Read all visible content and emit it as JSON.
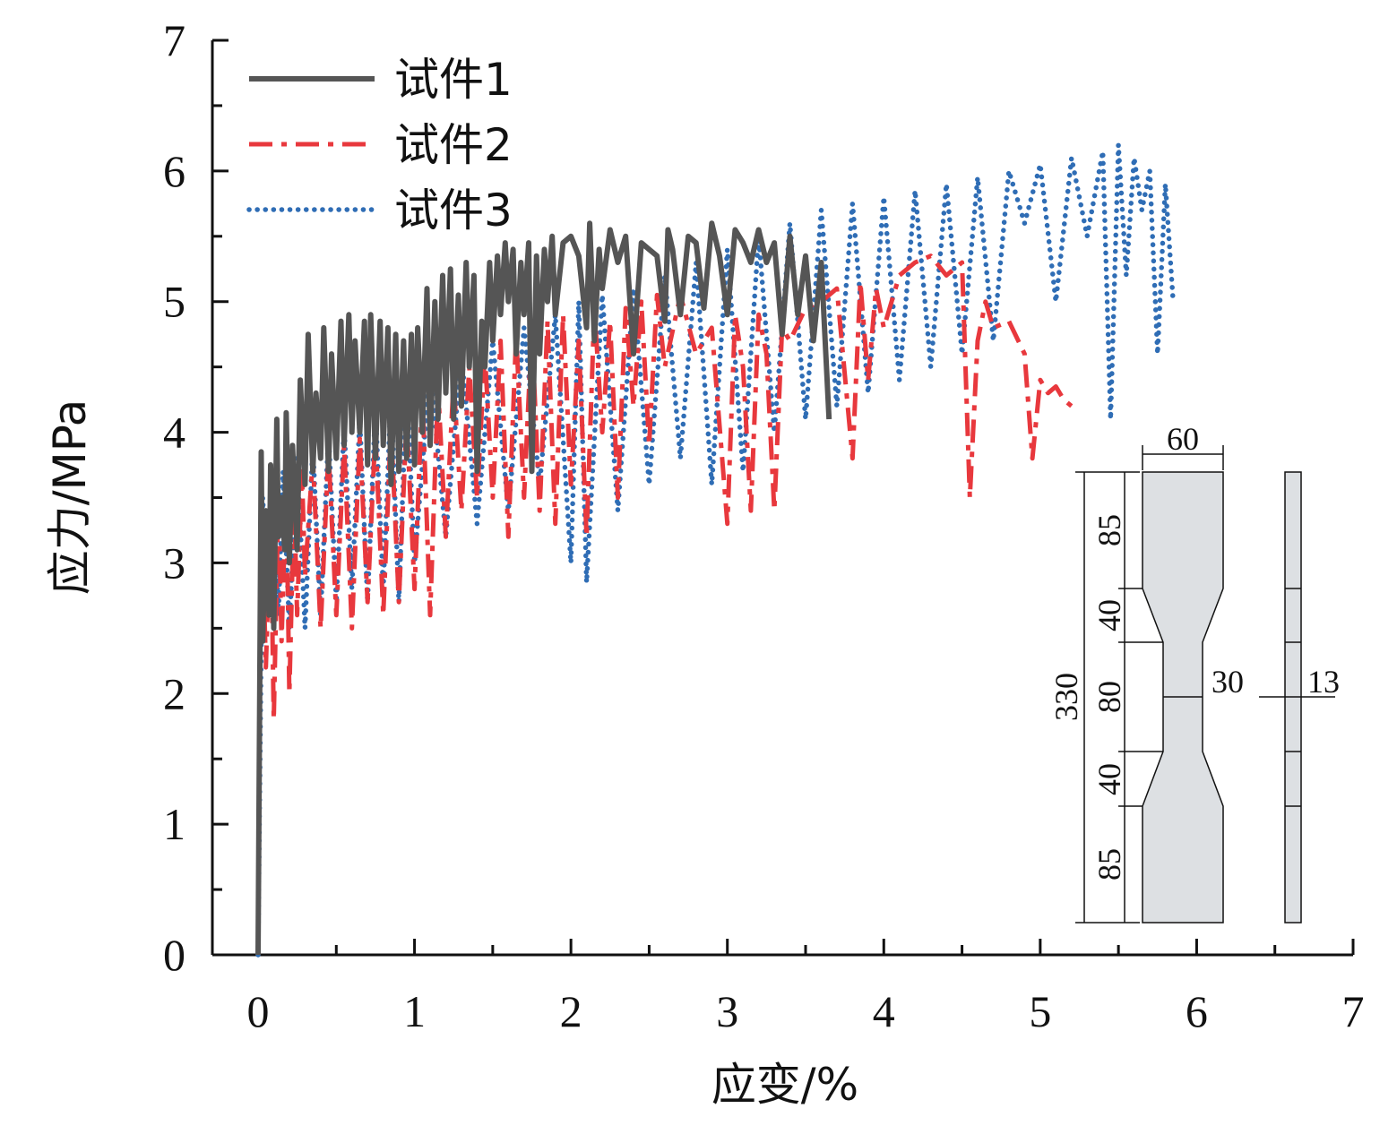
{
  "chart_data": {
    "type": "line",
    "title": "",
    "xlabel": "应变/%",
    "ylabel": "应力/MPa",
    "xlim": [
      0,
      7
    ],
    "ylim": [
      0,
      7
    ],
    "xticks": [
      "0",
      "1",
      "2",
      "3",
      "4",
      "5",
      "6",
      "7"
    ],
    "yticks": [
      "0",
      "1",
      "2",
      "3",
      "4",
      "5",
      "6",
      "7"
    ],
    "grid": false,
    "legend_position": "top-left",
    "series": [
      {
        "name": "试件1",
        "color": "#555555",
        "style": "solid",
        "x": [
          0,
          0.02,
          0.03,
          0.05,
          0.07,
          0.08,
          0.1,
          0.12,
          0.13,
          0.15,
          0.17,
          0.18,
          0.2,
          0.22,
          0.25,
          0.27,
          0.3,
          0.32,
          0.35,
          0.37,
          0.4,
          0.42,
          0.45,
          0.47,
          0.5,
          0.53,
          0.55,
          0.58,
          0.6,
          0.62,
          0.65,
          0.68,
          0.7,
          0.72,
          0.75,
          0.78,
          0.8,
          0.83,
          0.85,
          0.88,
          0.9,
          0.93,
          0.95,
          0.98,
          1.0,
          1.02,
          1.05,
          1.08,
          1.1,
          1.13,
          1.15,
          1.18,
          1.2,
          1.23,
          1.25,
          1.28,
          1.3,
          1.33,
          1.35,
          1.38,
          1.4,
          1.43,
          1.45,
          1.48,
          1.5,
          1.53,
          1.55,
          1.58,
          1.6,
          1.63,
          1.65,
          1.68,
          1.7,
          1.73,
          1.75,
          1.78,
          1.8,
          1.83,
          1.85,
          1.88,
          1.9,
          1.95,
          2.0,
          2.05,
          2.1,
          2.12,
          2.15,
          2.18,
          2.2,
          2.25,
          2.3,
          2.35,
          2.4,
          2.45,
          2.5,
          2.55,
          2.6,
          2.62,
          2.65,
          2.7,
          2.75,
          2.8,
          2.85,
          2.9,
          2.95,
          3.0,
          3.05,
          3.1,
          3.15,
          3.2,
          3.25,
          3.3,
          3.35,
          3.4,
          3.45,
          3.5,
          3.55,
          3.6,
          3.65
        ],
        "y": [
          0,
          3.85,
          2.4,
          3.4,
          2.6,
          3.75,
          2.5,
          4.1,
          3.2,
          3.5,
          3.1,
          4.15,
          3.0,
          3.9,
          3.1,
          4.4,
          3.6,
          4.75,
          3.7,
          4.3,
          3.8,
          4.8,
          3.7,
          4.6,
          3.8,
          4.85,
          3.9,
          4.9,
          4.0,
          4.7,
          4.0,
          4.85,
          3.75,
          4.9,
          3.8,
          4.85,
          3.9,
          4.8,
          3.6,
          4.75,
          3.7,
          4.7,
          3.8,
          4.75,
          3.75,
          4.8,
          4.0,
          5.1,
          3.9,
          5.0,
          4.1,
          5.2,
          4.3,
          5.25,
          4.1,
          5.05,
          4.2,
          5.3,
          4.5,
          5.2,
          3.7,
          4.85,
          4.5,
          5.3,
          4.7,
          5.35,
          4.9,
          5.45,
          5.0,
          5.4,
          4.6,
          5.3,
          4.9,
          5.45,
          3.7,
          5.35,
          4.6,
          5.4,
          5.0,
          5.5,
          4.9,
          5.45,
          5.5,
          5.35,
          4.8,
          5.6,
          4.7,
          5.4,
          5.1,
          5.55,
          5.3,
          5.5,
          4.6,
          5.45,
          5.4,
          5.35,
          4.85,
          5.55,
          5.4,
          4.9,
          5.5,
          5.45,
          4.95,
          5.6,
          5.35,
          4.9,
          5.55,
          5.45,
          5.3,
          5.55,
          5.3,
          5.45,
          4.75,
          5.5,
          4.9,
          5.35,
          4.7,
          5.3,
          4.1
        ]
      },
      {
        "name": "试件2",
        "color": "#e8383d",
        "style": "dashdot",
        "x": [
          0,
          0.02,
          0.05,
          0.08,
          0.1,
          0.13,
          0.15,
          0.18,
          0.2,
          0.23,
          0.25,
          0.28,
          0.3,
          0.35,
          0.4,
          0.45,
          0.5,
          0.55,
          0.6,
          0.65,
          0.7,
          0.75,
          0.8,
          0.85,
          0.9,
          0.95,
          1.0,
          1.05,
          1.1,
          1.15,
          1.2,
          1.25,
          1.3,
          1.35,
          1.4,
          1.45,
          1.5,
          1.55,
          1.6,
          1.65,
          1.7,
          1.75,
          1.8,
          1.85,
          1.9,
          1.95,
          2.0,
          2.05,
          2.1,
          2.15,
          2.2,
          2.25,
          2.3,
          2.35,
          2.4,
          2.45,
          2.5,
          2.55,
          2.6,
          2.7,
          2.8,
          2.9,
          3.0,
          3.05,
          3.1,
          3.15,
          3.2,
          3.25,
          3.3,
          3.35,
          3.4,
          3.5,
          3.6,
          3.7,
          3.8,
          3.85,
          3.9,
          3.95,
          4.0,
          4.1,
          4.2,
          4.3,
          4.4,
          4.5,
          4.55,
          4.6,
          4.65,
          4.7,
          4.8,
          4.9,
          4.95,
          5.0,
          5.05,
          5.1,
          5.15,
          5.2
        ],
        "y": [
          0,
          3.6,
          2.2,
          3.4,
          1.8,
          3.5,
          2.4,
          3.6,
          2.0,
          3.5,
          2.6,
          3.7,
          2.9,
          3.8,
          2.5,
          3.85,
          2.6,
          3.9,
          2.5,
          3.95,
          2.7,
          4.0,
          2.6,
          4.05,
          2.7,
          4.1,
          2.8,
          4.3,
          2.6,
          4.35,
          3.2,
          4.4,
          3.4,
          4.5,
          3.5,
          4.6,
          3.5,
          4.7,
          3.2,
          4.75,
          3.5,
          4.8,
          3.4,
          4.85,
          3.3,
          4.9,
          3.6,
          4.7,
          3.2,
          4.95,
          4.0,
          4.85,
          3.5,
          4.95,
          4.2,
          5.0,
          3.9,
          5.05,
          4.5,
          5.05,
          4.6,
          4.8,
          3.3,
          4.9,
          4.5,
          3.4,
          4.9,
          4.6,
          3.4,
          4.8,
          4.7,
          4.95,
          5.0,
          5.1,
          3.8,
          5.15,
          4.4,
          5.1,
          4.8,
          5.2,
          5.3,
          5.35,
          5.2,
          5.3,
          3.5,
          4.7,
          5.0,
          4.8,
          4.85,
          4.6,
          3.8,
          4.4,
          4.3,
          4.35,
          4.25,
          4.2
        ]
      },
      {
        "name": "试件3",
        "color": "#2f6db5",
        "style": "dotted",
        "x": [
          0,
          0.03,
          0.06,
          0.1,
          0.13,
          0.16,
          0.2,
          0.25,
          0.3,
          0.35,
          0.4,
          0.45,
          0.5,
          0.55,
          0.6,
          0.65,
          0.7,
          0.75,
          0.8,
          0.85,
          0.9,
          0.95,
          1.0,
          1.1,
          1.2,
          1.3,
          1.4,
          1.5,
          1.6,
          1.7,
          1.8,
          1.9,
          2.0,
          2.05,
          2.1,
          2.2,
          2.3,
          2.4,
          2.5,
          2.6,
          2.7,
          2.8,
          2.9,
          3.0,
          3.1,
          3.2,
          3.3,
          3.4,
          3.5,
          3.6,
          3.7,
          3.8,
          3.9,
          4.0,
          4.1,
          4.2,
          4.3,
          4.4,
          4.5,
          4.6,
          4.7,
          4.8,
          4.9,
          5.0,
          5.1,
          5.2,
          5.3,
          5.4,
          5.45,
          5.5,
          5.55,
          5.6,
          5.65,
          5.7,
          5.75,
          5.8,
          5.85
        ],
        "y": [
          0,
          3.5,
          2.8,
          3.6,
          2.6,
          3.7,
          2.5,
          3.8,
          2.5,
          3.9,
          2.6,
          4.0,
          2.7,
          4.05,
          2.8,
          4.1,
          2.7,
          4.2,
          2.8,
          4.3,
          2.7,
          4.4,
          3.0,
          4.5,
          3.2,
          4.6,
          3.3,
          4.7,
          3.4,
          4.8,
          3.6,
          4.9,
          3.0,
          5.0,
          2.85,
          5.05,
          3.4,
          5.1,
          3.6,
          5.2,
          3.8,
          5.3,
          3.6,
          5.4,
          3.7,
          5.5,
          4.0,
          5.6,
          4.1,
          5.7,
          4.2,
          5.75,
          4.3,
          5.8,
          4.4,
          5.85,
          4.5,
          5.9,
          4.6,
          5.95,
          4.7,
          6.0,
          5.6,
          6.05,
          5.0,
          6.1,
          5.5,
          6.15,
          4.1,
          6.2,
          5.2,
          6.1,
          5.7,
          6.0,
          4.6,
          5.9,
          5.0
        ]
      }
    ]
  },
  "inset": {
    "front_width": "60",
    "neck_width": "30",
    "thickness": "13",
    "total_length": "330",
    "segments": [
      "85",
      "40",
      "80",
      "40",
      "85"
    ]
  }
}
